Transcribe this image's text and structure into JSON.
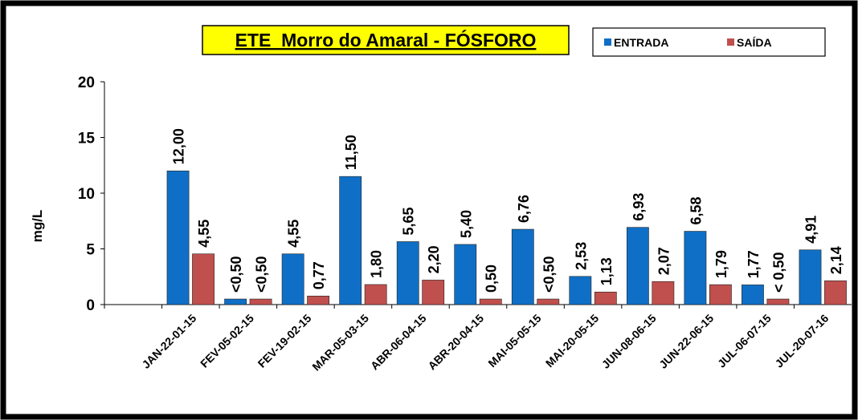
{
  "chart_data": {
    "type": "bar",
    "title": "ETE_Morro do Amaral - FÓSFORO",
    "y_label": "mg/L",
    "categories": [
      null,
      "JAN-22-01-15",
      "FEV-05-02-15",
      "FEV-19-02-15",
      "MAR-05-03-15",
      "ABR-06-04-15",
      "ABR-20-04-15",
      "MAI-05-05-15",
      "MAI-20-05-15",
      "JUN-08-06-15",
      "JUN-22-06-15",
      "JUL-06-07-15",
      "JUL-20-07-16"
    ],
    "series": [
      {
        "name": "ENTRADA",
        "color": "#0f6fc6",
        "values": [
          null,
          12,
          0.5,
          4.55,
          11.5,
          5.65,
          5.4,
          6.76,
          2.53,
          6.93,
          6.58,
          1.77,
          4.91
        ],
        "value_labels": [
          null,
          "12,00",
          "<0,50",
          "4,55",
          "11,50",
          "5,65",
          "5,40",
          "6,76",
          "2,53",
          "6,93",
          "6,58",
          "1,77",
          "4,91"
        ]
      },
      {
        "name": "SAÍDA",
        "color": "#c0504d",
        "values": [
          null,
          4.55,
          0.5,
          0.77,
          1.8,
          2.2,
          0.5,
          0.5,
          1.13,
          2.07,
          1.79,
          0.5,
          2.14
        ],
        "value_labels": [
          null,
          "4,55",
          "<0,50",
          "0,77",
          "1,80",
          "2,20",
          "0,50",
          "<0,50",
          "1,13",
          "2,07",
          "1,79",
          "< 0,50",
          "2,14"
        ]
      }
    ],
    "ylim": [
      0,
      20
    ],
    "yticks": [
      0,
      5,
      10,
      15,
      20
    ],
    "grid": false,
    "legend": "top-right"
  }
}
